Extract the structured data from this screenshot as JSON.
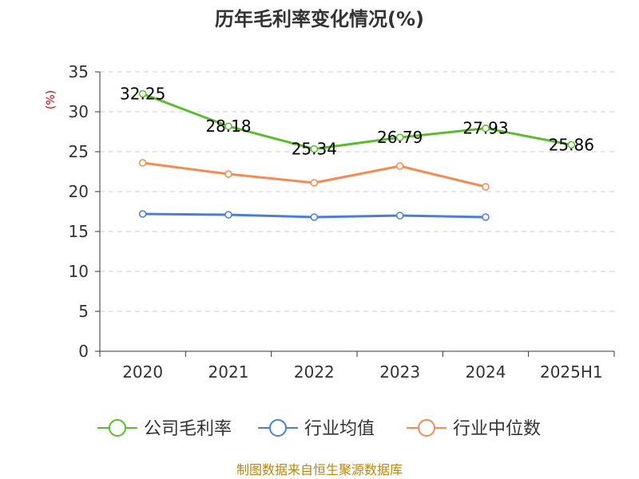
{
  "chart_data": {
    "type": "line",
    "title": "历年毛利率变化情况(%)",
    "ylabel": "(%)",
    "xlabel": "",
    "categories": [
      "2020",
      "2021",
      "2022",
      "2023",
      "2024",
      "2025H1"
    ],
    "ylim": [
      0,
      35
    ],
    "yticks": [
      "0",
      "5",
      "10",
      "15",
      "20",
      "25",
      "30",
      "35"
    ],
    "grid": true,
    "legend_position": "bottom",
    "series": [
      {
        "name": "公司毛利率",
        "color": "#5cbb2e",
        "values": [
          32.25,
          28.18,
          25.34,
          26.79,
          27.93,
          25.86
        ],
        "labels": [
          "32.25",
          "28.18",
          "25.34",
          "26.79",
          "27.93",
          "25.86"
        ]
      },
      {
        "name": "行业均值",
        "color": "#4a7fd6",
        "values": [
          17.2,
          17.1,
          16.8,
          17.0,
          16.8,
          null
        ]
      },
      {
        "name": "行业中位数",
        "color": "#f28b54",
        "values": [
          23.6,
          22.2,
          21.1,
          23.2,
          20.6,
          null
        ]
      }
    ]
  },
  "source": "制图数据来自恒生聚源数据库"
}
